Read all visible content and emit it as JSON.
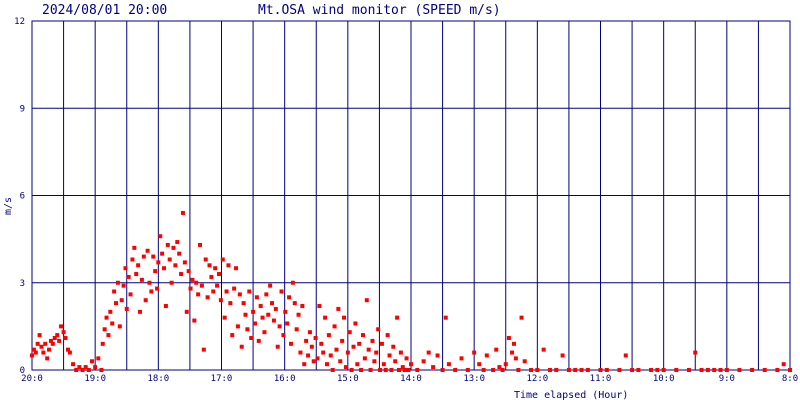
{
  "header": {
    "timestamp": "2024/08/01 20:00",
    "title": "Mt.OSA wind monitor (SPEED m/s)"
  },
  "chart_data": {
    "type": "scatter",
    "title": "Mt.OSA wind monitor (SPEED m/s)",
    "xlabel": "Time elapsed (Hour)",
    "ylabel": "m/s",
    "x_direction": "time runs right-to-left (20:0 at left, 8:0 at right)",
    "xlim": [
      0,
      12
    ],
    "ylim": [
      0,
      12
    ],
    "grid": true,
    "y_ticks": [
      0,
      3,
      6,
      9,
      12
    ],
    "y_tick_labels": [
      "0",
      "3",
      "6",
      "9",
      "12"
    ],
    "x_ticks": [
      0,
      1,
      2,
      3,
      4,
      5,
      6,
      7,
      8,
      9,
      10,
      11,
      12
    ],
    "x_tick_labels": [
      "20:0",
      "19:0",
      "18:0",
      "17:0",
      "16:0",
      "15:0",
      "14:0",
      "13:0",
      "12:0",
      "11:0",
      "10:0",
      "9:0",
      "8:0"
    ],
    "color": "#ff0000",
    "series": [
      {
        "points": [
          [
            0.0,
            0.5
          ],
          [
            0.03,
            0.7
          ],
          [
            0.06,
            0.6
          ],
          [
            0.09,
            0.9
          ],
          [
            0.12,
            1.2
          ],
          [
            0.15,
            0.8
          ],
          [
            0.18,
            0.6
          ],
          [
            0.21,
            0.9
          ],
          [
            0.24,
            0.4
          ],
          [
            0.27,
            0.7
          ],
          [
            0.3,
            1.0
          ],
          [
            0.33,
            0.9
          ],
          [
            0.36,
            1.1
          ],
          [
            0.4,
            1.2
          ],
          [
            0.43,
            1.0
          ],
          [
            0.46,
            1.5
          ],
          [
            0.5,
            1.3
          ],
          [
            0.53,
            1.1
          ],
          [
            0.57,
            0.7
          ],
          [
            0.6,
            0.6
          ],
          [
            0.65,
            0.2
          ],
          [
            0.7,
            0.0
          ],
          [
            0.75,
            0.1
          ],
          [
            0.8,
            0.0
          ],
          [
            0.85,
            0.1
          ],
          [
            0.9,
            0.0
          ],
          [
            0.95,
            0.3
          ],
          [
            1.0,
            0.1
          ],
          [
            1.05,
            0.4
          ],
          [
            1.1,
            0.0
          ],
          [
            1.12,
            0.9
          ],
          [
            1.15,
            1.4
          ],
          [
            1.18,
            1.8
          ],
          [
            1.21,
            1.2
          ],
          [
            1.24,
            2.0
          ],
          [
            1.27,
            1.6
          ],
          [
            1.3,
            2.7
          ],
          [
            1.33,
            2.3
          ],
          [
            1.36,
            3.0
          ],
          [
            1.39,
            1.5
          ],
          [
            1.42,
            2.4
          ],
          [
            1.45,
            2.9
          ],
          [
            1.48,
            3.5
          ],
          [
            1.5,
            2.1
          ],
          [
            1.53,
            3.2
          ],
          [
            1.56,
            2.6
          ],
          [
            1.59,
            3.8
          ],
          [
            1.62,
            4.2
          ],
          [
            1.65,
            3.3
          ],
          [
            1.68,
            3.6
          ],
          [
            1.71,
            2.0
          ],
          [
            1.74,
            3.1
          ],
          [
            1.77,
            3.9
          ],
          [
            1.8,
            2.4
          ],
          [
            1.83,
            4.1
          ],
          [
            1.86,
            3.0
          ],
          [
            1.89,
            2.7
          ],
          [
            1.92,
            3.9
          ],
          [
            1.95,
            3.4
          ],
          [
            1.98,
            2.8
          ],
          [
            2.0,
            3.7
          ],
          [
            2.03,
            4.6
          ],
          [
            2.06,
            4.0
          ],
          [
            2.09,
            3.5
          ],
          [
            2.12,
            2.2
          ],
          [
            2.15,
            4.3
          ],
          [
            2.18,
            3.8
          ],
          [
            2.21,
            3.0
          ],
          [
            2.24,
            4.2
          ],
          [
            2.27,
            3.6
          ],
          [
            2.3,
            4.4
          ],
          [
            2.33,
            4.0
          ],
          [
            2.36,
            3.3
          ],
          [
            2.39,
            5.4
          ],
          [
            2.42,
            3.7
          ],
          [
            2.45,
            2.0
          ],
          [
            2.48,
            3.4
          ],
          [
            2.51,
            2.8
          ],
          [
            2.54,
            3.1
          ],
          [
            2.57,
            1.7
          ],
          [
            2.6,
            3.0
          ],
          [
            2.63,
            2.6
          ],
          [
            2.66,
            4.3
          ],
          [
            2.69,
            2.9
          ],
          [
            2.72,
            0.7
          ],
          [
            2.75,
            3.8
          ],
          [
            2.78,
            2.5
          ],
          [
            2.81,
            3.6
          ],
          [
            2.84,
            3.2
          ],
          [
            2.87,
            2.7
          ],
          [
            2.9,
            3.5
          ],
          [
            2.93,
            2.9
          ],
          [
            2.96,
            3.3
          ],
          [
            2.99,
            2.4
          ],
          [
            3.02,
            3.8
          ],
          [
            3.05,
            1.8
          ],
          [
            3.08,
            2.7
          ],
          [
            3.11,
            3.6
          ],
          [
            3.14,
            2.3
          ],
          [
            3.17,
            1.2
          ],
          [
            3.2,
            2.8
          ],
          [
            3.23,
            3.5
          ],
          [
            3.26,
            1.5
          ],
          [
            3.29,
            2.6
          ],
          [
            3.32,
            0.8
          ],
          [
            3.35,
            2.3
          ],
          [
            3.38,
            1.9
          ],
          [
            3.41,
            1.4
          ],
          [
            3.44,
            2.7
          ],
          [
            3.47,
            1.1
          ],
          [
            3.5,
            2.0
          ],
          [
            3.53,
            1.6
          ],
          [
            3.56,
            2.5
          ],
          [
            3.59,
            1.0
          ],
          [
            3.62,
            2.2
          ],
          [
            3.65,
            1.8
          ],
          [
            3.68,
            1.3
          ],
          [
            3.71,
            2.6
          ],
          [
            3.74,
            1.9
          ],
          [
            3.77,
            2.9
          ],
          [
            3.8,
            2.3
          ],
          [
            3.83,
            1.7
          ],
          [
            3.86,
            2.1
          ],
          [
            3.89,
            0.8
          ],
          [
            3.92,
            1.5
          ],
          [
            3.95,
            2.7
          ],
          [
            3.98,
            1.2
          ],
          [
            4.01,
            2.0
          ],
          [
            4.04,
            1.6
          ],
          [
            4.07,
            2.5
          ],
          [
            4.1,
            0.9
          ],
          [
            4.13,
            3.0
          ],
          [
            4.16,
            2.3
          ],
          [
            4.19,
            1.4
          ],
          [
            4.22,
            1.9
          ],
          [
            4.25,
            0.6
          ],
          [
            4.28,
            2.2
          ],
          [
            4.31,
            0.2
          ],
          [
            4.34,
            1.0
          ],
          [
            4.37,
            0.5
          ],
          [
            4.4,
            1.3
          ],
          [
            4.43,
            0.8
          ],
          [
            4.46,
            0.3
          ],
          [
            4.49,
            1.1
          ],
          [
            4.52,
            0.4
          ],
          [
            4.55,
            2.2
          ],
          [
            4.58,
            0.9
          ],
          [
            4.61,
            0.6
          ],
          [
            4.64,
            1.8
          ],
          [
            4.67,
            0.2
          ],
          [
            4.7,
            1.2
          ],
          [
            4.73,
            0.5
          ],
          [
            4.76,
            0.0
          ],
          [
            4.79,
            1.5
          ],
          [
            4.82,
            0.7
          ],
          [
            4.85,
            2.1
          ],
          [
            4.88,
            0.3
          ],
          [
            4.91,
            1.0
          ],
          [
            4.94,
            1.8
          ],
          [
            4.97,
            0.1
          ],
          [
            5.0,
            0.6
          ],
          [
            5.03,
            1.3
          ],
          [
            5.06,
            0.0
          ],
          [
            5.09,
            0.8
          ],
          [
            5.12,
            1.6
          ],
          [
            5.15,
            0.2
          ],
          [
            5.18,
            0.9
          ],
          [
            5.21,
            0.0
          ],
          [
            5.24,
            1.2
          ],
          [
            5.27,
            0.4
          ],
          [
            5.3,
            2.4
          ],
          [
            5.33,
            0.7
          ],
          [
            5.36,
            0.0
          ],
          [
            5.39,
            1.0
          ],
          [
            5.42,
            0.3
          ],
          [
            5.45,
            0.6
          ],
          [
            5.48,
            1.4
          ],
          [
            5.51,
            0.0
          ],
          [
            5.54,
            0.9
          ],
          [
            5.57,
            0.2
          ],
          [
            5.6,
            0.0
          ],
          [
            5.63,
            1.2
          ],
          [
            5.66,
            0.5
          ],
          [
            5.69,
            0.0
          ],
          [
            5.72,
            0.8
          ],
          [
            5.75,
            0.3
          ],
          [
            5.78,
            1.8
          ],
          [
            5.81,
            0.0
          ],
          [
            5.84,
            0.6
          ],
          [
            5.87,
            0.1
          ],
          [
            5.9,
            0.0
          ],
          [
            5.93,
            0.4
          ],
          [
            5.96,
            0.0
          ],
          [
            6.0,
            0.2
          ],
          [
            6.1,
            0.0
          ],
          [
            6.2,
            0.3
          ],
          [
            6.28,
            0.6
          ],
          [
            6.35,
            0.1
          ],
          [
            6.42,
            0.5
          ],
          [
            6.5,
            0.0
          ],
          [
            6.55,
            1.8
          ],
          [
            6.6,
            0.2
          ],
          [
            6.7,
            0.0
          ],
          [
            6.8,
            0.4
          ],
          [
            6.9,
            0.0
          ],
          [
            7.0,
            0.6
          ],
          [
            7.08,
            0.2
          ],
          [
            7.15,
            0.0
          ],
          [
            7.2,
            0.5
          ],
          [
            7.3,
            0.0
          ],
          [
            7.35,
            0.7
          ],
          [
            7.4,
            0.1
          ],
          [
            7.45,
            0.0
          ],
          [
            7.5,
            0.2
          ],
          [
            7.55,
            1.1
          ],
          [
            7.6,
            0.6
          ],
          [
            7.63,
            0.9
          ],
          [
            7.66,
            0.4
          ],
          [
            7.7,
            0.0
          ],
          [
            7.75,
            1.8
          ],
          [
            7.8,
            0.3
          ],
          [
            7.9,
            0.0
          ],
          [
            8.0,
            0.0
          ],
          [
            8.1,
            0.7
          ],
          [
            8.2,
            0.0
          ],
          [
            8.3,
            0.0
          ],
          [
            8.4,
            0.5
          ],
          [
            8.5,
            0.0
          ],
          [
            8.6,
            0.0
          ],
          [
            8.7,
            0.0
          ],
          [
            8.8,
            0.0
          ],
          [
            9.0,
            0.0
          ],
          [
            9.1,
            0.0
          ],
          [
            9.3,
            0.0
          ],
          [
            9.4,
            0.5
          ],
          [
            9.5,
            0.0
          ],
          [
            9.6,
            0.0
          ],
          [
            9.8,
            0.0
          ],
          [
            9.9,
            0.0
          ],
          [
            10.0,
            0.0
          ],
          [
            10.2,
            0.0
          ],
          [
            10.4,
            0.0
          ],
          [
            10.5,
            0.6
          ],
          [
            10.6,
            0.0
          ],
          [
            10.7,
            0.0
          ],
          [
            10.8,
            0.0
          ],
          [
            10.9,
            0.0
          ],
          [
            11.0,
            0.0
          ],
          [
            11.2,
            0.0
          ],
          [
            11.4,
            0.0
          ],
          [
            11.6,
            0.0
          ],
          [
            11.8,
            0.0
          ],
          [
            11.9,
            0.2
          ],
          [
            12.0,
            0.0
          ]
        ]
      }
    ]
  }
}
